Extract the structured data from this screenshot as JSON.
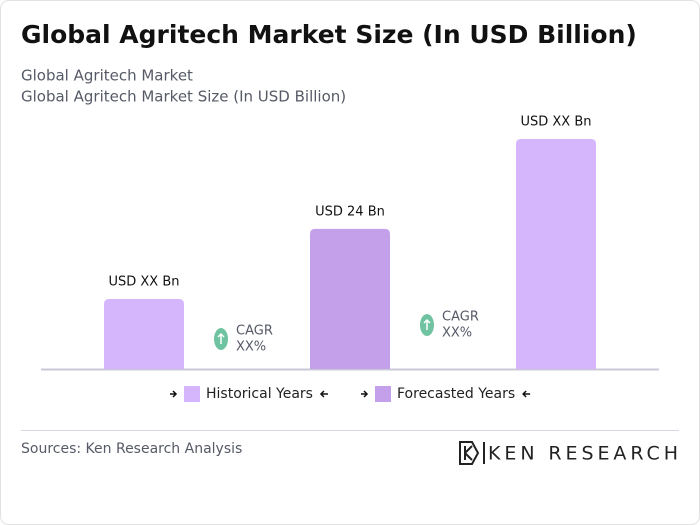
{
  "chart_data": {
    "type": "bar",
    "title": "Global Agritech Market Size (In USD Billion)",
    "subtitle": [
      "Global Agritech Market",
      "Global Agritech Market Size (In USD Billion)"
    ],
    "categories": [
      null,
      null,
      null
    ],
    "values": [
      12,
      24,
      39.4
    ],
    "value_labels": [
      "USD XX Bn",
      "USD 24 Bn",
      "USD XX Bn"
    ],
    "colors": [
      "#d5b6fd",
      "#c3a0e9",
      "#d5b6fd"
    ],
    "annotations": [
      {
        "label": "CAGR",
        "value": "XX%"
      },
      {
        "label": "CAGR",
        "value": "XX%"
      }
    ],
    "annotation_color": "#6fc3a0",
    "legend": [
      {
        "name": "Historical Years",
        "color": "#d5b6fd"
      },
      {
        "name": "Forecasted Years",
        "color": "#c3a0e9"
      }
    ],
    "source": "Sources: Ken Research Analysis",
    "logo": "KEN RESEARCH"
  }
}
